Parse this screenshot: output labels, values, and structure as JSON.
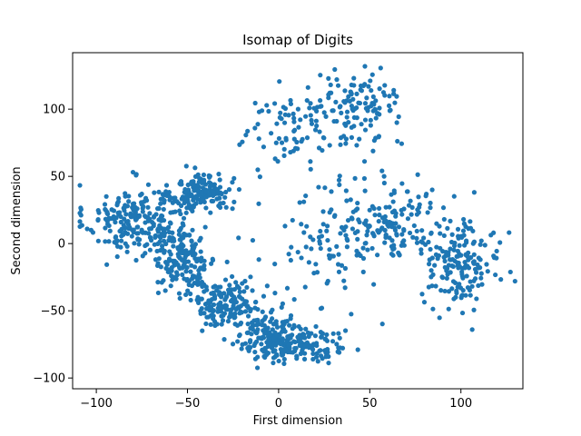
{
  "chart_data": {
    "type": "scatter",
    "title": "Isomap of Digits",
    "xlabel": "First dimension",
    "ylabel": "Second dimension",
    "xlim": [
      -113,
      134
    ],
    "ylim": [
      -108,
      142
    ],
    "xticks": [
      -100,
      -50,
      0,
      50,
      100
    ],
    "yticks": [
      -100,
      -50,
      0,
      50,
      100
    ],
    "grid": false,
    "marker_color": "#1f77b4",
    "clusters": [
      {
        "name": "left-arm",
        "cx": -78,
        "cy": 18,
        "sx": 14,
        "sy": 13,
        "n": 230
      },
      {
        "name": "upper-left-lobe",
        "cx": -42,
        "cy": 38,
        "sx": 8,
        "sy": 7,
        "n": 160
      },
      {
        "name": "left-middle",
        "cx": -52,
        "cy": -12,
        "sx": 9,
        "sy": 14,
        "n": 170
      },
      {
        "name": "lower-left-diag",
        "cx": -28,
        "cy": -45,
        "sx": 9,
        "sy": 8,
        "n": 150
      },
      {
        "name": "bottom-blob",
        "cx": -2,
        "cy": -70,
        "sx": 10,
        "sy": 8,
        "n": 190
      },
      {
        "name": "bottom-right-tail",
        "cx": 20,
        "cy": -78,
        "sx": 9,
        "sy": 7,
        "n": 70
      },
      {
        "name": "upper-center",
        "cx": 15,
        "cy": 85,
        "sx": 18,
        "sy": 16,
        "n": 110
      },
      {
        "name": "top-peak",
        "cx": 45,
        "cy": 105,
        "sx": 10,
        "sy": 12,
        "n": 90
      },
      {
        "name": "right-middle",
        "cx": 60,
        "cy": 15,
        "sx": 16,
        "sy": 15,
        "n": 160
      },
      {
        "name": "far-right",
        "cx": 100,
        "cy": -15,
        "sx": 11,
        "sy": 16,
        "n": 170
      },
      {
        "name": "center-sparse",
        "cx": 20,
        "cy": -10,
        "sx": 16,
        "sy": 22,
        "n": 70
      }
    ]
  }
}
